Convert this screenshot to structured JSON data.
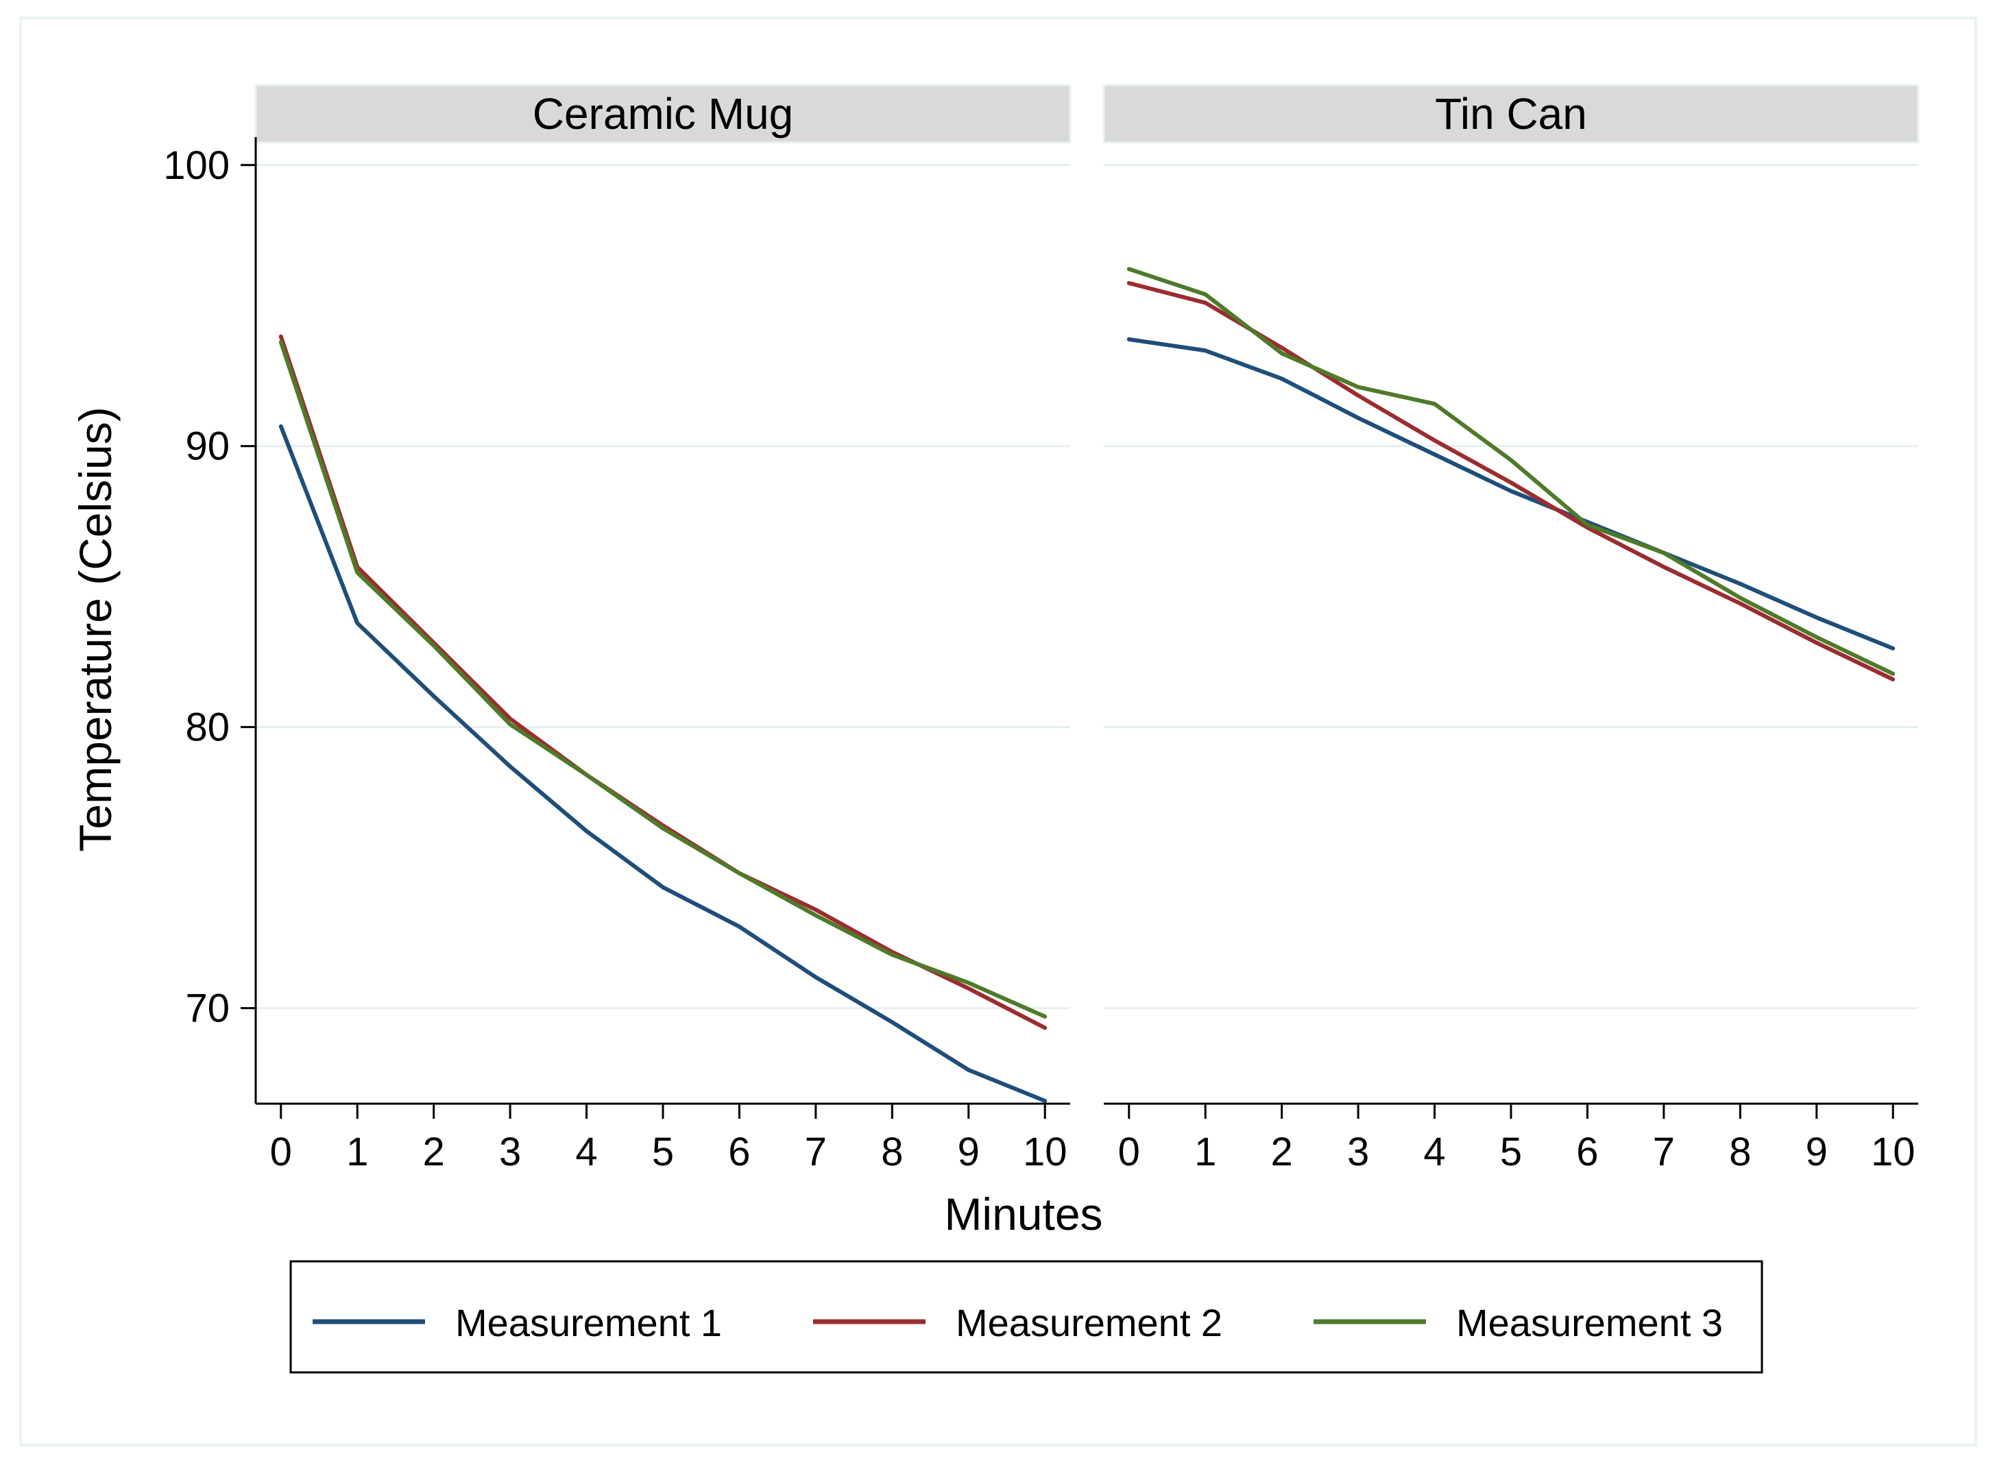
{
  "chart_data": {
    "type": "line",
    "facets": [
      "Ceramic Mug",
      "Tin Can"
    ],
    "x": [
      0,
      1,
      2,
      3,
      4,
      5,
      6,
      7,
      8,
      9,
      10
    ],
    "xlabel": "Minutes",
    "ylabel": "Temperature (Celsius)",
    "yticks": [
      70,
      80,
      90,
      100
    ],
    "xticks": [
      0,
      1,
      2,
      3,
      4,
      5,
      6,
      7,
      8,
      9,
      10
    ],
    "ylim": [
      66.6,
      100.8
    ],
    "xlim": [
      -0.33,
      10.33
    ],
    "grid": true,
    "legend_position": "bottom",
    "series_names": [
      "Measurement 1",
      "Measurement 2",
      "Measurement 3"
    ],
    "series_colors": [
      "#1f4e79",
      "#9b2d30",
      "#4e7a2a"
    ],
    "panels": [
      {
        "facet": "Ceramic Mug",
        "series": [
          {
            "name": "Measurement 1",
            "values": [
              90.7,
              83.7,
              81.1,
              78.6,
              76.3,
              74.3,
              72.9,
              71.1,
              69.5,
              67.8,
              66.7
            ]
          },
          {
            "name": "Measurement 2",
            "values": [
              93.9,
              85.7,
              83.0,
              80.3,
              78.3,
              76.5,
              74.8,
              73.5,
              72.0,
              70.7,
              69.3
            ]
          },
          {
            "name": "Measurement 3",
            "values": [
              93.7,
              85.5,
              82.9,
              80.1,
              78.3,
              76.4,
              74.8,
              73.3,
              71.9,
              70.9,
              69.7
            ]
          }
        ]
      },
      {
        "facet": "Tin Can",
        "series": [
          {
            "name": "Measurement 1",
            "values": [
              93.8,
              93.4,
              92.4,
              91.0,
              89.7,
              88.4,
              87.3,
              86.2,
              85.1,
              83.9,
              82.8
            ]
          },
          {
            "name": "Measurement 2",
            "values": [
              95.8,
              95.1,
              93.5,
              91.8,
              90.2,
              88.7,
              87.1,
              85.7,
              84.4,
              83.0,
              81.7
            ]
          },
          {
            "name": "Measurement 3",
            "values": [
              96.3,
              95.4,
              93.3,
              92.1,
              91.5,
              89.5,
              87.2,
              86.2,
              84.6,
              83.2,
              81.9
            ]
          }
        ]
      }
    ]
  }
}
